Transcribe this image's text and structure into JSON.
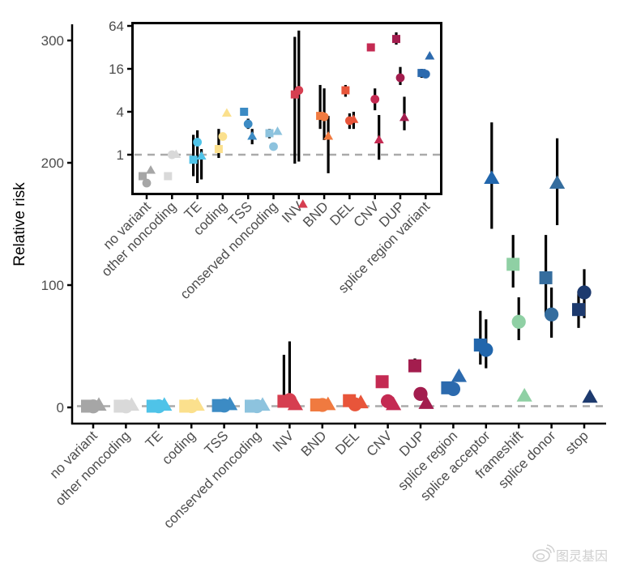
{
  "chart_data": [
    {
      "id": "main",
      "type": "scatter",
      "subtype": "point-range",
      "title": "",
      "xlabel": "",
      "ylabel": "Relative risk",
      "ylim": [
        0,
        320
      ],
      "yticks": [
        0,
        100,
        200,
        300
      ],
      "reference_line": {
        "y": 1,
        "style": "dashed",
        "color": "#aaaaaa"
      },
      "grid": false,
      "legend": "none",
      "categories": [
        "no variant",
        "other noncoding",
        "TE",
        "coding",
        "TSS",
        "conserved noncoding",
        "INV",
        "BND",
        "DEL",
        "CNV",
        "DUP",
        "splice region",
        "splice acceptor",
        "frameshift",
        "splice donor",
        "stop"
      ],
      "colors": [
        "#a6a6a6",
        "#d9d9d9",
        "#4fc3e8",
        "#fbe08d",
        "#3c8bc4",
        "#8dc3de",
        "#d63e50",
        "#f07a40",
        "#e8553a",
        "#c42a52",
        "#a31d4e",
        "#2c6aae",
        "#2166ac",
        "#8fd0a4",
        "#356d9e",
        "#1d3a6e"
      ],
      "series": [
        {
          "name": "square",
          "marker": "square",
          "values": [
            1,
            1,
            1,
            1,
            1.5,
            1,
            5,
            2,
            5.5,
            21,
            34,
            16,
            51,
            117,
            106,
            80
          ],
          "ci_low": [
            null,
            null,
            null,
            null,
            null,
            null,
            0,
            null,
            null,
            null,
            29,
            null,
            35,
            98,
            76,
            65
          ],
          "ci_high": [
            null,
            null,
            null,
            null,
            null,
            null,
            43,
            null,
            null,
            null,
            40,
            null,
            79,
            141,
            141,
            95
          ]
        },
        {
          "name": "circle",
          "marker": "circle",
          "values": [
            0.8,
            0.8,
            0.9,
            1,
            1.5,
            1,
            6,
            2,
            2.5,
            5,
            11,
            15,
            47,
            70,
            76,
            94
          ],
          "ci_low": [
            null,
            null,
            null,
            null,
            null,
            null,
            0,
            null,
            null,
            null,
            null,
            null,
            32,
            55,
            57,
            73
          ],
          "ci_high": [
            null,
            null,
            null,
            null,
            null,
            null,
            54,
            null,
            null,
            null,
            null,
            null,
            72,
            90,
            98,
            113
          ]
        },
        {
          "name": "triangle",
          "marker": "triangle",
          "values": [
            1.5,
            1.5,
            1.5,
            1.5,
            2,
            1.5,
            2,
            2,
            3.5,
            2,
            3,
            25,
            187,
            9,
            183,
            8
          ],
          "ci_low": [
            null,
            null,
            null,
            null,
            null,
            null,
            null,
            null,
            null,
            null,
            null,
            null,
            146,
            null,
            149,
            null
          ],
          "ci_high": [
            null,
            null,
            null,
            null,
            null,
            null,
            null,
            null,
            null,
            null,
            null,
            null,
            233,
            null,
            220,
            null
          ]
        }
      ]
    },
    {
      "id": "inset",
      "type": "scatter",
      "subtype": "point-range",
      "ylabel": "",
      "yscale": "log2",
      "ylim": [
        0.2,
        70
      ],
      "yticks": [
        1,
        4,
        16,
        64
      ],
      "ytick_labels": [
        "1",
        "4",
        "16",
        "64"
      ],
      "reference_line": {
        "y": 1,
        "style": "dashed",
        "color": "#aaaaaa"
      },
      "categories": [
        "no variant",
        "other noncoding",
        "TE",
        "coding",
        "TSS",
        "conserved noncoding",
        "INV",
        "BND",
        "DEL",
        "CNV",
        "DUP",
        "splice region variant"
      ],
      "colors": [
        "#a6a6a6",
        "#d9d9d9",
        "#4fc3e8",
        "#fbe08d",
        "#3c8bc4",
        "#8dc3de",
        "#d63e50",
        "#f07a40",
        "#e8553a",
        "#c42a52",
        "#a31d4e",
        "#2c6aae"
      ],
      "series": [
        {
          "name": "square",
          "marker": "square",
          "values": [
            0.5,
            0.5,
            0.85,
            1.2,
            4.0,
            2.0,
            7.0,
            3.5,
            8.0,
            32,
            42,
            14.0
          ],
          "ci_low": [
            null,
            null,
            0.5,
            0.9,
            null,
            1.7,
            0.75,
            2.3,
            6.5,
            null,
            35,
            12
          ],
          "ci_high": [
            null,
            null,
            1.9,
            2.3,
            null,
            2.3,
            45,
            9.5,
            9.5,
            null,
            52,
            16
          ]
        },
        {
          "name": "circle",
          "marker": "circle",
          "values": [
            0.4,
            1.0,
            1.5,
            1.8,
            2.7,
            1.3,
            8.0,
            3.4,
            3.0,
            6.0,
            12.0,
            13.5
          ],
          "ci_low": [
            null,
            null,
            0.4,
            null,
            2.3,
            null,
            0.8,
            1.6,
            2.3,
            4.2,
            9.5,
            null
          ],
          "ci_high": [
            null,
            null,
            2.2,
            null,
            3.2,
            null,
            55,
            8.5,
            3.8,
            8.5,
            17,
            null
          ]
        },
        {
          "name": "triangle",
          "marker": "triangle",
          "values": [
            0.6,
            1.0,
            0.95,
            3.8,
            1.8,
            2.1,
            0.2,
            1.8,
            3.1,
            1.6,
            3.3,
            24
          ],
          "ci_low": [
            null,
            null,
            0.45,
            null,
            1.4,
            null,
            null,
            0.55,
            2.3,
            0.85,
            2.2,
            null
          ],
          "ci_high": [
            null,
            null,
            1.2,
            null,
            2.3,
            null,
            null,
            3.5,
            4.0,
            3.6,
            6.5,
            null
          ]
        }
      ]
    }
  ],
  "watermark": {
    "icon": "weibo-icon",
    "text": "图灵基因"
  }
}
